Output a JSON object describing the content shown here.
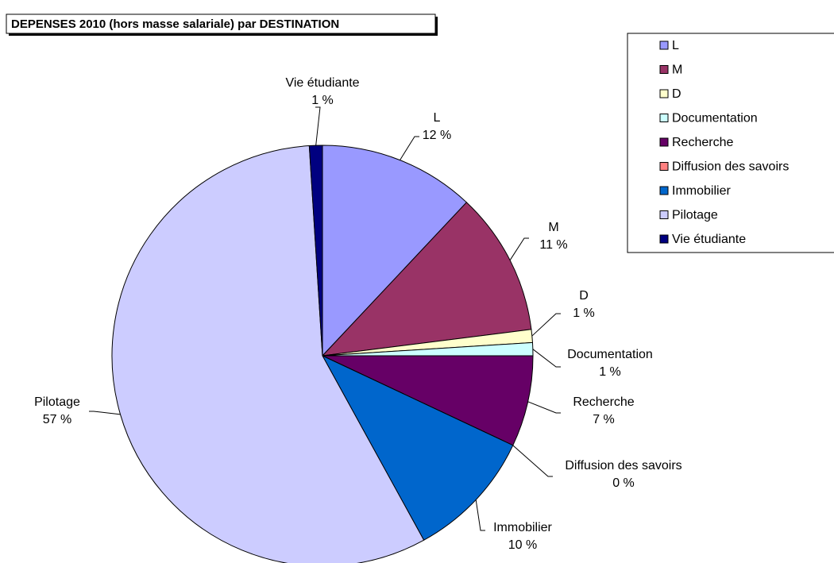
{
  "chart_data": {
    "type": "pie",
    "title": "DEPENSES 2010 (hors masse salariale) par DESTINATION",
    "categories": [
      "L",
      "M",
      "D",
      "Documentation",
      "Recherche",
      "Diffusion des savoirs",
      "Immobilier",
      "Pilotage",
      "Vie étudiante"
    ],
    "values": [
      12,
      11,
      1,
      1,
      7,
      0,
      10,
      57,
      1
    ],
    "value_labels": [
      "12 %",
      "11 %",
      "1 %",
      "1 %",
      "7 %",
      "0 %",
      "10 %",
      "57 %",
      "1 %"
    ],
    "colors": [
      "#9999ff",
      "#993366",
      "#ffffcc",
      "#ccffff",
      "#660066",
      "#ff8080",
      "#0066cc",
      "#ccccff",
      "#000080"
    ],
    "legend": "top-right"
  }
}
